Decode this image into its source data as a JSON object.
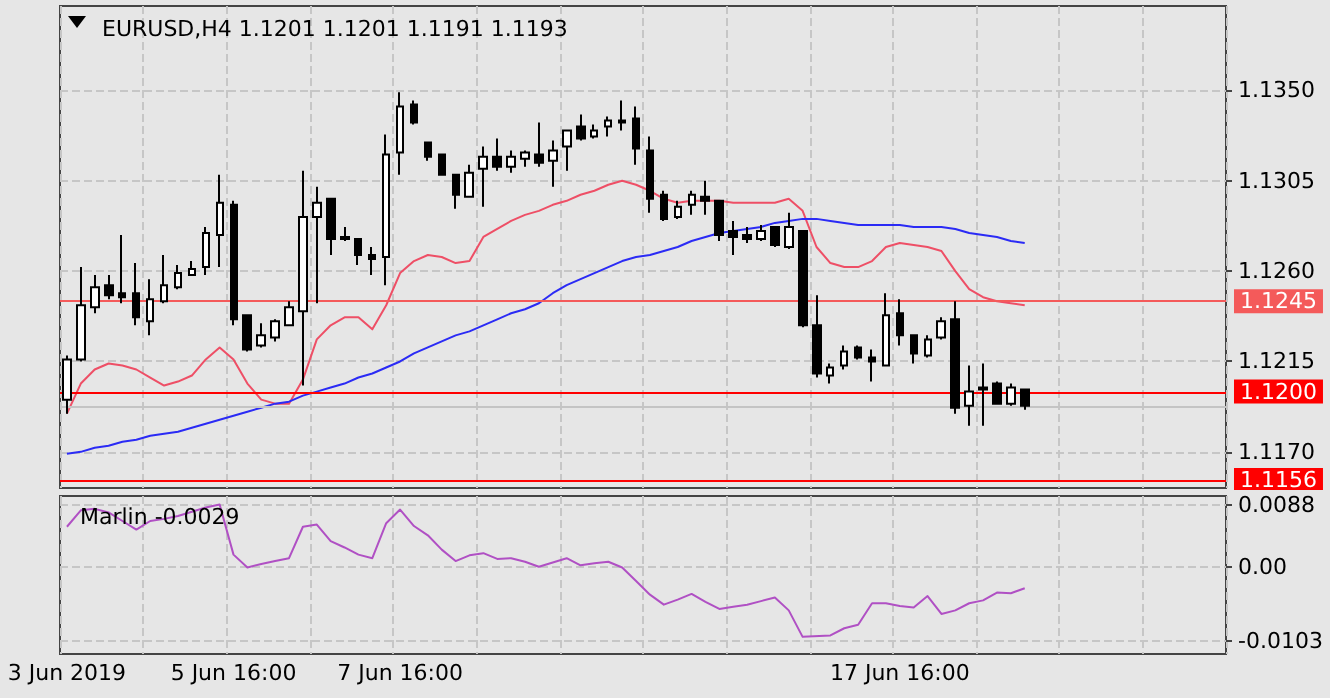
{
  "chart_data": [
    {
      "type": "candlestick",
      "title": "EURUSD,H4 1.1201 1.1201 1.1191 1.1193",
      "categories": [
        null,
        null,
        null,
        null,
        null,
        null,
        null,
        null,
        null,
        null,
        null,
        null,
        null,
        null,
        null,
        null,
        null,
        null,
        null,
        null,
        null,
        null,
        null,
        null,
        null,
        null,
        null,
        null,
        null,
        null,
        null,
        null,
        null,
        null,
        null,
        null,
        null,
        null,
        null,
        null,
        null,
        null,
        null,
        null,
        null,
        null,
        null,
        null,
        null,
        null,
        null,
        null,
        null,
        null,
        null,
        null,
        null,
        null,
        null,
        null,
        null,
        null,
        null,
        null,
        null,
        null,
        null,
        null,
        null,
        null,
        null,
        null,
        null,
        null,
        null,
        null,
        null,
        null,
        null,
        null,
        null,
        null,
        null,
        null
      ],
      "ohlc": [
        [
          1.1196,
          1.1218,
          1.1189,
          1.1216
        ],
        [
          1.1216,
          1.1262,
          1.1215,
          1.1243
        ],
        [
          1.1242,
          1.1258,
          1.1239,
          1.1252
        ],
        [
          1.1253,
          1.1258,
          1.1246,
          1.1248
        ],
        [
          1.1249,
          1.1278,
          1.1244,
          1.1247
        ],
        [
          1.1249,
          1.1264,
          1.1233,
          1.1237
        ],
        [
          1.1235,
          1.1256,
          1.1228,
          1.1246
        ],
        [
          1.1245,
          1.1268,
          1.1244,
          1.1253
        ],
        [
          1.1252,
          1.1263,
          1.1251,
          1.1259
        ],
        [
          1.1258,
          1.1265,
          1.1258,
          1.1261
        ],
        [
          1.1262,
          1.1282,
          1.1258,
          1.1279
        ],
        [
          1.1278,
          1.1308,
          1.1262,
          1.1294
        ],
        [
          1.1293,
          1.1295,
          1.1233,
          1.1236
        ],
        [
          1.1238,
          1.1238,
          1.122,
          1.1221
        ],
        [
          1.1223,
          1.1234,
          1.1222,
          1.1228
        ],
        [
          1.1227,
          1.1236,
          1.1225,
          1.1235
        ],
        [
          1.1233,
          1.1245,
          1.1233,
          1.1242
        ],
        [
          1.124,
          1.131,
          1.1203,
          1.1287
        ],
        [
          1.1287,
          1.1302,
          1.1244,
          1.1294
        ],
        [
          1.1296,
          1.1296,
          1.1268,
          1.1276
        ],
        [
          1.1277,
          1.1282,
          1.1275,
          1.1276
        ],
        [
          1.1276,
          1.1276,
          1.1263,
          1.1268
        ],
        [
          1.1268,
          1.1272,
          1.1258,
          1.1266
        ],
        [
          1.1267,
          1.1328,
          1.1253,
          1.1318
        ],
        [
          1.1319,
          1.1349,
          1.1308,
          1.1342
        ],
        [
          1.1343,
          1.1345,
          1.1333,
          1.1334
        ],
        [
          1.1324,
          1.1324,
          1.1315,
          1.1317
        ],
        [
          1.1318,
          1.1318,
          1.1308,
          1.1308
        ],
        [
          1.1308,
          1.1308,
          1.1291,
          1.1298
        ],
        [
          1.1297,
          1.1313,
          1.1297,
          1.1309
        ],
        [
          1.1311,
          1.1322,
          1.1292,
          1.1317
        ],
        [
          1.1317,
          1.1326,
          1.131,
          1.1312
        ],
        [
          1.1312,
          1.132,
          1.1309,
          1.1317
        ],
        [
          1.1316,
          1.132,
          1.1312,
          1.1319
        ],
        [
          1.1318,
          1.1334,
          1.1312,
          1.1314
        ],
        [
          1.1315,
          1.1325,
          1.1302,
          1.132
        ],
        [
          1.1322,
          1.133,
          1.131,
          1.133
        ],
        [
          1.1332,
          1.1338,
          1.1325,
          1.1326
        ],
        [
          1.1327,
          1.1333,
          1.1326,
          1.133
        ],
        [
          1.1332,
          1.1337,
          1.1327,
          1.1335
        ],
        [
          1.1335,
          1.1345,
          1.133,
          1.1334
        ],
        [
          1.1336,
          1.1342,
          1.1313,
          1.1321
        ],
        [
          1.132,
          1.1327,
          1.1289,
          1.1296
        ],
        [
          1.1298,
          1.13,
          1.1285,
          1.1286
        ],
        [
          1.1287,
          1.1295,
          1.1286,
          1.1292
        ],
        [
          1.1293,
          1.13,
          1.1288,
          1.1298
        ],
        [
          1.1297,
          1.1305,
          1.1288,
          1.1295
        ],
        [
          1.1295,
          1.1295,
          1.1275,
          1.1278
        ],
        [
          1.128,
          1.1285,
          1.1268,
          1.1277
        ],
        [
          1.1278,
          1.1282,
          1.1274,
          1.1276
        ],
        [
          1.1276,
          1.1283,
          1.1275,
          1.128
        ],
        [
          1.1282,
          1.1282,
          1.1272,
          1.1273
        ],
        [
          1.1272,
          1.1289,
          1.1271,
          1.1282
        ],
        [
          1.128,
          1.128,
          1.1232,
          1.1233
        ],
        [
          1.1233,
          1.1248,
          1.1207,
          1.1209
        ],
        [
          1.1208,
          1.1214,
          1.1204,
          1.1212
        ],
        [
          1.1213,
          1.1223,
          1.1211,
          1.122
        ],
        [
          1.1222,
          1.1223,
          1.1216,
          1.1217
        ],
        [
          1.1217,
          1.1221,
          1.1205,
          1.1215
        ],
        [
          1.1213,
          1.1249,
          1.1213,
          1.1238
        ],
        [
          1.1239,
          1.1246,
          1.1223,
          1.1228
        ],
        [
          1.1228,
          1.1228,
          1.1214,
          1.1219
        ],
        [
          1.1218,
          1.1228,
          1.1217,
          1.1226
        ],
        [
          1.1227,
          1.1237,
          1.1226,
          1.1235
        ],
        [
          1.1236,
          1.1245,
          1.1189,
          1.1192
        ],
        [
          1.1193,
          1.1213,
          1.1183,
          1.12
        ],
        [
          1.1202,
          1.1214,
          1.1183,
          1.1201
        ],
        [
          1.1204,
          1.1205,
          1.1194,
          1.1194
        ],
        [
          1.1194,
          1.1204,
          1.1193,
          1.1202
        ],
        [
          1.1201,
          1.1201,
          1.1191,
          1.1193
        ],
        null,
        null,
        null,
        null,
        null,
        null,
        null,
        null,
        null,
        null,
        null,
        null,
        null,
        null
      ],
      "series": [
        {
          "type": "line",
          "color": "#ee4f66",
          "values": [
            1.1189,
            1.1204,
            1.1211,
            1.1214,
            1.1213,
            1.1211,
            1.1207,
            1.1203,
            1.1205,
            1.1208,
            1.1216,
            1.1222,
            1.1216,
            1.1204,
            1.1196,
            1.1194,
            1.1194,
            1.1206,
            1.1226,
            1.1233,
            1.1237,
            1.1237,
            1.1231,
            1.1243,
            1.1259,
            1.1265,
            1.1268,
            1.1267,
            1.1264,
            1.1265,
            1.1277,
            1.1281,
            1.1285,
            1.1288,
            1.129,
            1.1293,
            1.1295,
            1.1298,
            1.13,
            1.1303,
            1.1305,
            1.1303,
            1.13,
            1.1296,
            1.1294,
            1.1295,
            1.1295,
            1.1295,
            1.1294,
            1.1294,
            1.1294,
            1.1294,
            1.1296,
            1.129,
            1.1272,
            1.1264,
            1.1262,
            1.1262,
            1.1265,
            1.1272,
            1.1274,
            1.1273,
            1.1272,
            1.127,
            1.126,
            1.1251,
            1.1247,
            1.1245,
            1.1244,
            1.1243,
            null,
            null,
            null,
            null,
            null,
            null,
            null,
            null,
            null,
            null,
            null,
            null,
            null,
            null
          ]
        },
        {
          "type": "line",
          "color": "#2b2bf5",
          "values": [
            1.1169,
            1.117,
            1.1172,
            1.1173,
            1.1175,
            1.1176,
            1.1178,
            1.1179,
            1.118,
            1.1182,
            1.1184,
            1.1186,
            1.1188,
            1.119,
            1.1192,
            1.1194,
            1.1195,
            1.1198,
            1.12,
            1.1202,
            1.1204,
            1.1207,
            1.1209,
            1.1212,
            1.1215,
            1.1219,
            1.1222,
            1.1225,
            1.1228,
            1.123,
            1.1233,
            1.1236,
            1.1239,
            1.1241,
            1.1244,
            1.1249,
            1.1253,
            1.1256,
            1.1259,
            1.1262,
            1.1265,
            1.1267,
            1.1268,
            1.127,
            1.1272,
            1.1275,
            1.1277,
            1.1279,
            1.128,
            1.1281,
            1.1282,
            1.1284,
            1.1285,
            1.1286,
            1.1286,
            1.1285,
            1.1284,
            1.1283,
            1.1283,
            1.1283,
            1.1283,
            1.1282,
            1.1282,
            1.1282,
            1.1281,
            1.1279,
            1.1278,
            1.1277,
            1.1275,
            1.1274,
            null,
            null,
            null,
            null,
            null,
            null,
            null,
            null,
            null,
            null,
            null,
            null,
            null,
            null
          ]
        }
      ],
      "ylim": [
        1.1152,
        1.1392
      ],
      "yticks": [
        {
          "value": 1.117,
          "label": "1.1170"
        },
        {
          "value": 1.1215,
          "label": "1.1215"
        },
        {
          "value": 1.126,
          "label": "1.1260"
        },
        {
          "value": 1.1305,
          "label": "1.1305"
        },
        {
          "value": 1.135,
          "label": "1.1350"
        }
      ],
      "ref_lines": [
        {
          "axis": "y",
          "value": 1.1245,
          "label": "1.1245",
          "color": "#f45a5a"
        },
        {
          "axis": "y",
          "value": 1.12,
          "label": "1.1200",
          "color": "#ff0000"
        },
        {
          "axis": "y",
          "value": 1.1156,
          "label": "1.1156",
          "color": "#ff0000"
        },
        {
          "axis": "y",
          "value": 1.1193,
          "color": "#c4c4c4"
        }
      ],
      "grid": true,
      "marker": "none",
      "tick_labels": "y"
    },
    {
      "type": "line",
      "title": "Marlin -0.0029",
      "categories": [
        "3 Jun 2019",
        null,
        null,
        null,
        null,
        null,
        null,
        null,
        null,
        null,
        null,
        null,
        "5 Jun 16:00",
        null,
        null,
        null,
        null,
        null,
        null,
        null,
        null,
        null,
        null,
        null,
        "7 Jun 16:00",
        null,
        null,
        null,
        null,
        null,
        null,
        null,
        null,
        null,
        null,
        null,
        null,
        null,
        null,
        null,
        null,
        null,
        null,
        null,
        null,
        null,
        null,
        null,
        null,
        null,
        null,
        null,
        null,
        null,
        null,
        null,
        null,
        null,
        null,
        null,
        "17 Jun 16:00",
        null,
        null,
        null,
        null,
        null,
        null,
        null,
        null,
        null,
        null,
        null,
        null,
        null,
        null,
        null,
        null,
        null,
        null,
        null,
        null,
        null,
        null,
        null
      ],
      "series": [
        {
          "color": "#b050c4",
          "values": [
            0.0057,
            0.008,
            0.0082,
            0.0077,
            0.0065,
            0.0053,
            0.0065,
            0.0068,
            0.0072,
            0.0078,
            0.0084,
            0.0088,
            0.0018,
            0.0,
            0.0005,
            0.0009,
            0.0013,
            0.0057,
            0.006,
            0.0037,
            0.0028,
            0.0018,
            0.0013,
            0.0062,
            0.0081,
            0.0058,
            0.0045,
            0.0025,
            0.0009,
            0.0017,
            0.002,
            0.0012,
            0.0013,
            0.0008,
            0.0001,
            0.0007,
            0.0013,
            0.0003,
            0.0006,
            0.0008,
            0.0,
            -0.0019,
            -0.0038,
            -0.0052,
            -0.0045,
            -0.0037,
            -0.0048,
            -0.0058,
            -0.0055,
            -0.0052,
            -0.0047,
            -0.0042,
            -0.006,
            -0.0097,
            null,
            -0.0095,
            -0.0085,
            -0.008,
            -0.005,
            -0.005,
            -0.0054,
            -0.0056,
            -0.004,
            -0.0065,
            -0.006,
            -0.005,
            -0.0046,
            -0.0035,
            -0.0036,
            -0.0029,
            null,
            null,
            null,
            null,
            null,
            null,
            null,
            null,
            null,
            null,
            null,
            null,
            null,
            null
          ]
        }
      ],
      "ylim": [
        -0.0121,
        0.01
      ],
      "yticks": [
        {
          "value": -0.0103,
          "label": "-0.0103"
        },
        {
          "value": 0,
          "label": "0.00"
        },
        {
          "value": 0.0088,
          "label": "0.0088"
        }
      ],
      "grid": true,
      "marker": "none"
    }
  ]
}
